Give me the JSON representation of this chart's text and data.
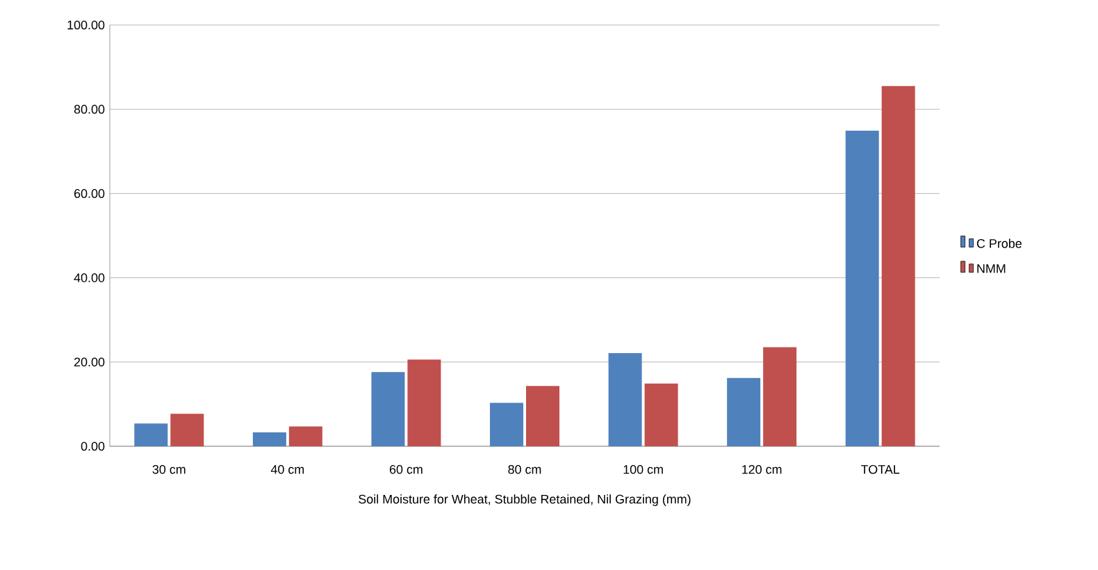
{
  "chart_data": {
    "type": "bar",
    "xlabel": "Soil Moisture for Wheat, Stubble Retained, Nil Grazing (mm)",
    "categories": [
      "30 cm",
      "40 cm",
      "60 cm",
      "80 cm",
      "100 cm",
      "120 cm",
      "TOTAL"
    ],
    "series": [
      {
        "name": "C Probe",
        "color": "#4f81bd",
        "values": [
          5.4,
          3.3,
          17.6,
          10.3,
          22.1,
          16.2,
          74.9
        ]
      },
      {
        "name": "NMM",
        "color": "#c0504d",
        "values": [
          7.7,
          4.7,
          20.6,
          14.3,
          14.9,
          23.5,
          85.5
        ]
      }
    ],
    "ylim": [
      0,
      100
    ],
    "yticks": [
      {
        "value": 0,
        "label": "0.00"
      },
      {
        "value": 20,
        "label": "20.00"
      },
      {
        "value": 40,
        "label": "40.00"
      },
      {
        "value": 60,
        "label": "60.00"
      },
      {
        "value": 80,
        "label": "80.00"
      },
      {
        "value": 100,
        "label": "100.00"
      }
    ],
    "grid": "y",
    "legend": "right"
  }
}
